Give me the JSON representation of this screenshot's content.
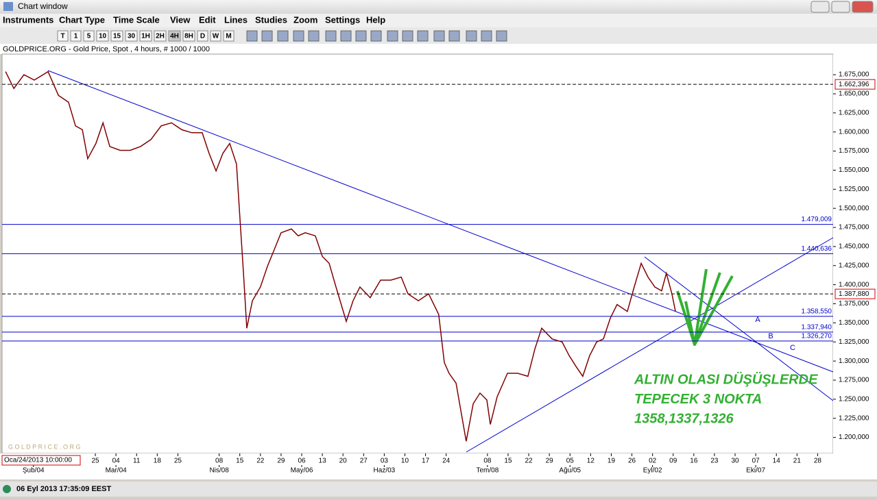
{
  "window": {
    "title": "Chart window"
  },
  "menu": [
    "Instruments",
    "Chart Type",
    "Time Scale",
    "View",
    "Edit",
    "Lines",
    "Studies",
    "Zoom",
    "Settings",
    "Help"
  ],
  "toolbar": [
    "T",
    "1",
    "5",
    "10",
    "15",
    "30",
    "1H",
    "2H",
    "4H",
    "8H",
    "D",
    "W",
    "M"
  ],
  "chart_data": {
    "type": "line",
    "subtitle": "GOLDPRICE.ORG - Gold Price, Spot , 4 hours, # 1000 / 1000",
    "watermark": "G O L D P R I C E . O R G",
    "cursor_date": "Oca/24/2013 10:00:00",
    "color": "#800000",
    "x": [
      -4.35,
      -3.95,
      -3.46,
      -2.96,
      -2.29,
      -1.79,
      -1.3,
      -0.96,
      -0.63,
      -0.37,
      0.03,
      0.37,
      0.7,
      1.2,
      1.69,
      2.19,
      2.69,
      3.19,
      3.69,
      4.19,
      4.68,
      5.18,
      5.51,
      5.85,
      6.18,
      6.51,
      6.84,
      7.01,
      7.18,
      7.34,
      7.61,
      8.0,
      8.34,
      8.67,
      9.0,
      9.5,
      9.83,
      10.17,
      10.66,
      11.0,
      11.33,
      11.66,
      12.16,
      12.49,
      12.82,
      13.32,
      13.82,
      14.32,
      14.82,
      15.15,
      15.65,
      16.15,
      16.64,
      16.91,
      17.14,
      17.48,
      17.71,
      17.97,
      18.31,
      18.64,
      18.97,
      19.14,
      19.47,
      19.97,
      20.47,
      20.96,
      21.3,
      21.63,
      22.13,
      22.62,
      22.96,
      23.29,
      23.62,
      23.95,
      24.29,
      24.62,
      24.95,
      25.28,
      25.78,
      26.11,
      26.45,
      26.78,
      27.11,
      27.44,
      27.67,
      27.94,
      28.11
    ],
    "values": [
      1679,
      1657,
      1675,
      1668,
      1679,
      1648,
      1639,
      1608,
      1603,
      1565,
      1585,
      1612,
      1581,
      1576,
      1576,
      1581,
      1590,
      1608,
      1612,
      1603,
      1599,
      1599,
      1572,
      1549,
      1572,
      1585,
      1558,
      1486,
      1415,
      1343,
      1379,
      1397,
      1424,
      1446,
      1468,
      1473,
      1464,
      1468,
      1464,
      1437,
      1428,
      1397,
      1352,
      1379,
      1397,
      1383,
      1406,
      1406,
      1410,
      1388,
      1379,
      1388,
      1361,
      1298,
      1284,
      1271,
      1235,
      1195,
      1244,
      1258,
      1249,
      1217,
      1253,
      1284,
      1284,
      1280,
      1316,
      1343,
      1329,
      1325,
      1307,
      1293,
      1280,
      1307,
      1325,
      1329,
      1356,
      1374,
      1365,
      1397,
      1428,
      1410,
      1397,
      1392,
      1415,
      1388,
      1365
    ],
    "xlim": [
      -4.52,
      35.75
    ],
    "ylim": [
      1179,
      1702
    ],
    "yticks": [
      {
        "value": 1200,
        "label": "1.200,000"
      },
      {
        "value": 1225,
        "label": "1.225,000"
      },
      {
        "value": 1250,
        "label": "1.250,000"
      },
      {
        "value": 1275,
        "label": "1.275,000"
      },
      {
        "value": 1300,
        "label": "1.300,000"
      },
      {
        "value": 1325,
        "label": "1.325,000"
      },
      {
        "value": 1350,
        "label": "1.350,000"
      },
      {
        "value": 1375,
        "label": "1.375,000"
      },
      {
        "value": 1400,
        "label": "1.400,000"
      },
      {
        "value": 1425,
        "label": "1.425,000"
      },
      {
        "value": 1450,
        "label": "1.450,000"
      },
      {
        "value": 1475,
        "label": "1.475,000"
      },
      {
        "value": 1500,
        "label": "1.500,000"
      },
      {
        "value": 1525,
        "label": "1.525,000"
      },
      {
        "value": 1550,
        "label": "1.550,000"
      },
      {
        "value": 1575,
        "label": "1.575,000"
      },
      {
        "value": 1600,
        "label": "1.600,000"
      },
      {
        "value": 1625,
        "label": "1.625,000"
      },
      {
        "value": 1650,
        "label": "1.650,000"
      },
      {
        "value": 1675,
        "label": "1.675,000"
      }
    ],
    "xticks": [
      {
        "value": 0,
        "label": "25"
      },
      {
        "value": 1,
        "label": "04"
      },
      {
        "value": 2,
        "label": "11"
      },
      {
        "value": 3,
        "label": "18"
      },
      {
        "value": 4,
        "label": "25"
      },
      {
        "value": 6,
        "label": "08"
      },
      {
        "value": 7,
        "label": "15"
      },
      {
        "value": 8,
        "label": "22"
      },
      {
        "value": 9,
        "label": "29"
      },
      {
        "value": 10,
        "label": "06"
      },
      {
        "value": 11,
        "label": "13"
      },
      {
        "value": 12,
        "label": "20"
      },
      {
        "value": 13,
        "label": "27"
      },
      {
        "value": 14,
        "label": "03"
      },
      {
        "value": 15,
        "label": "10"
      },
      {
        "value": 16,
        "label": "17"
      },
      {
        "value": 17,
        "label": "24"
      },
      {
        "value": 19,
        "label": "08"
      },
      {
        "value": 20,
        "label": "15"
      },
      {
        "value": 21,
        "label": "22"
      },
      {
        "value": 22,
        "label": "29"
      },
      {
        "value": 23,
        "label": "05"
      },
      {
        "value": 24,
        "label": "12"
      },
      {
        "value": 25,
        "label": "19"
      },
      {
        "value": 26,
        "label": "26"
      },
      {
        "value": 27,
        "label": "02"
      },
      {
        "value": 28,
        "label": "09"
      },
      {
        "value": 29,
        "label": "16"
      },
      {
        "value": 30,
        "label": "23"
      },
      {
        "value": 31,
        "label": "30"
      },
      {
        "value": 32,
        "label": "07"
      },
      {
        "value": 33,
        "label": "14"
      },
      {
        "value": 34,
        "label": "21"
      },
      {
        "value": 35,
        "label": "28"
      }
    ],
    "month_ticks": [
      {
        "value": -3,
        "label": "Şub/04"
      },
      {
        "value": 1,
        "label": "Mar/04"
      },
      {
        "value": 6,
        "label": "Nis/08"
      },
      {
        "value": 10,
        "label": "May/06"
      },
      {
        "value": 14,
        "label": "Haz/03"
      },
      {
        "value": 19,
        "label": "Tem/08"
      },
      {
        "value": 23,
        "label": "Ağu/05"
      },
      {
        "value": 27,
        "label": "Eyl/02"
      },
      {
        "value": 32,
        "label": "Eki/07"
      }
    ],
    "levels": [
      {
        "value": 1662.396,
        "label": "1.662,396",
        "dashed": true
      },
      {
        "value": 1479.009,
        "label": "1.479,009",
        "dashed": false
      },
      {
        "value": 1440.636,
        "label": "1.440,636",
        "dashed": false
      },
      {
        "value": 1387.88,
        "label": "1.387,880",
        "dashed": true
      },
      {
        "value": 1358.55,
        "label": "1.358,550",
        "dashed": false
      },
      {
        "value": 1337.94,
        "label": "1.337,940",
        "dashed": false
      },
      {
        "value": 1326.27,
        "label": "1.326,270",
        "dashed": false
      }
    ],
    "line_labels": [
      "A",
      "B",
      "C"
    ],
    "annotation": [
      "ALTIN OLASI DÜŞÜŞLERDE",
      "TEPECEK 3 NOKTA",
      "1358,1337,1326"
    ]
  },
  "status": {
    "time": "06 Eyl 2013 17:35:09 EEST"
  }
}
